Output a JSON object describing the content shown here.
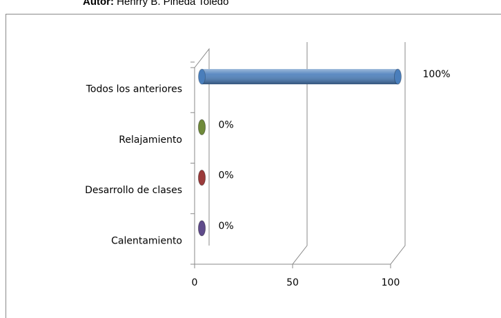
{
  "caption": {
    "label": "Autor:",
    "author": "Henrry B. Pineda Toledo"
  },
  "chart_data": {
    "type": "bar3d_horizontal",
    "categories": [
      "Calentamiento",
      "Desarrollo de clases",
      "Relajamiento",
      "Todos los anteriores"
    ],
    "series": [
      {
        "values": [
          0,
          0,
          0,
          100
        ],
        "value_labels": [
          "0%",
          "0%",
          "0%",
          "100%"
        ],
        "colors": [
          "#5f4b8b",
          "#9b3b3b",
          "#6f8a3a",
          "#4a7ebb"
        ]
      }
    ],
    "xlim": [
      0,
      100
    ],
    "xticks": [
      0,
      50,
      100
    ],
    "grid": true
  }
}
